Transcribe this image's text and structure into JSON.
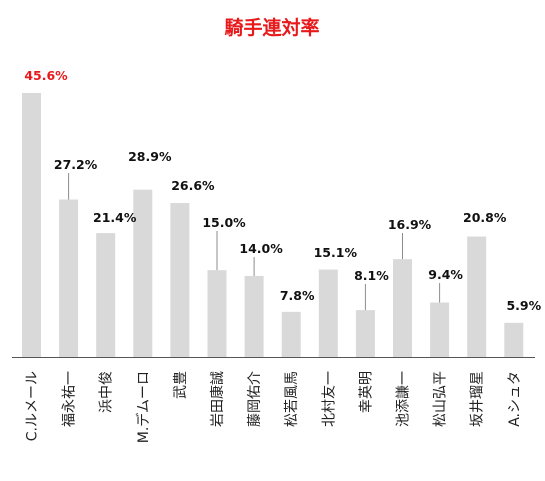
{
  "colors": {
    "bar": "#d9d9d9",
    "highlight_label": "#e8191b",
    "label": "#111111",
    "title": "#e8191b",
    "axis": "#555555",
    "leader": "#8c8c8c"
  },
  "chart_data": {
    "type": "bar",
    "title": "騎手連対率",
    "xlabel": "",
    "ylabel": "",
    "ylim": [
      0,
      46
    ],
    "grid": false,
    "legend": "none",
    "categories": [
      "C.ルメール",
      "福永祐一",
      "浜中俊",
      "M.デムーロ",
      "武豊",
      "岩田康誠",
      "藤岡佑介",
      "松若風馬",
      "北村友一",
      "幸英明",
      "池添謙一",
      "松山弘平",
      "坂井瑠星",
      "A.シュタ"
    ],
    "values": [
      45.6,
      27.2,
      21.4,
      28.9,
      26.6,
      15.0,
      14.0,
      7.8,
      15.1,
      8.1,
      16.9,
      9.4,
      20.8,
      5.9
    ],
    "value_labels": [
      "45.6%",
      "27.2%",
      "21.4%",
      "28.9%",
      "26.6%",
      "15.0%",
      "14.0%",
      "7.8%",
      "15.1%",
      "8.1%",
      "16.9%",
      "9.4%",
      "20.8%",
      "5.9%"
    ],
    "highlight_index": 0
  }
}
